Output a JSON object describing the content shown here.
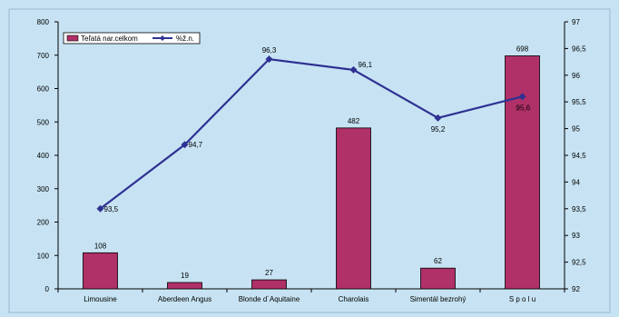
{
  "chart_data": {
    "type": "bar+line",
    "categories": [
      "Limousine",
      "Aberdeen Angus",
      "Blonde d´Aquitaine",
      "Charolais",
      "Simentál bezrohý",
      "S p o l u"
    ],
    "series": [
      {
        "name": "Teľatá nar.celkom",
        "type": "bar",
        "axis": "left",
        "values": [
          108,
          19,
          27,
          482,
          62,
          698
        ],
        "labels": [
          "108",
          "19",
          "27",
          "482",
          "62",
          "698"
        ],
        "color": "#b03068"
      },
      {
        "name": "%ž.n.",
        "type": "line",
        "axis": "right",
        "values": [
          93.5,
          94.7,
          96.3,
          96.1,
          95.2,
          95.6
        ],
        "labels": [
          "93,5",
          "94,7",
          "96,3",
          "96,1",
          "95,2",
          "95,6"
        ],
        "color": "#2e3192"
      }
    ],
    "y_left": {
      "min": 0,
      "max": 800,
      "ticks": [
        0,
        100,
        200,
        300,
        400,
        500,
        600,
        700,
        800
      ],
      "tick_labels": [
        "0",
        "100",
        "200",
        "300",
        "400",
        "500",
        "600",
        "700",
        "800"
      ]
    },
    "y_right": {
      "min": 92,
      "max": 97,
      "ticks": [
        92,
        92.5,
        93,
        93.5,
        94,
        94.5,
        95,
        95.5,
        96,
        96.5,
        97
      ],
      "tick_labels": [
        "92",
        "92,5",
        "93",
        "93,5",
        "94",
        "94,5",
        "95",
        "95,5",
        "96",
        "96,5",
        "97"
      ]
    },
    "legend_position": "top-left",
    "grid": false,
    "colors": {
      "background": "#c7e3f3",
      "bar": "#b03068",
      "line": "#2e3192"
    }
  }
}
